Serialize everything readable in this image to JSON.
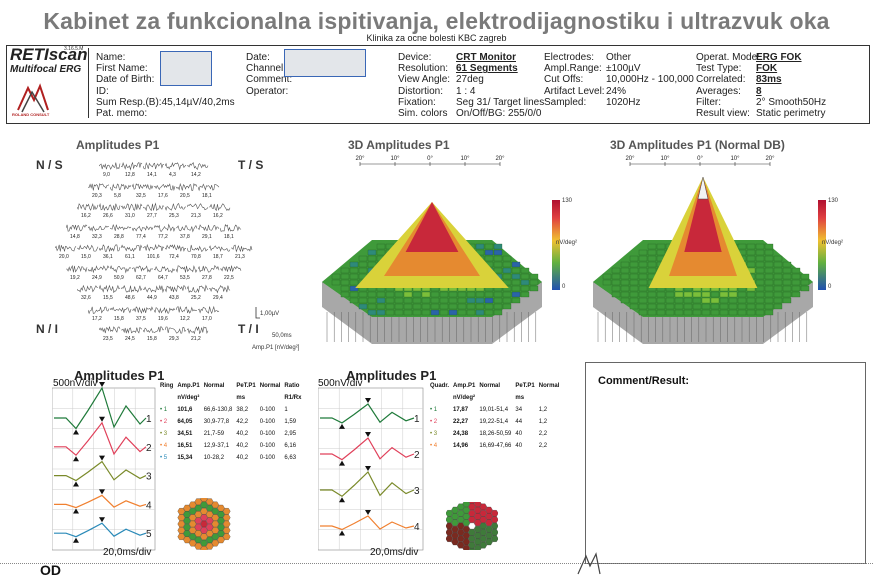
{
  "header": {
    "title": "Kabinet za funkcionalna ispitivanja, elektrodijagnostiku i ultrazvuk oka",
    "subtitle": "Klinika za ocne bolesti KBC zagreb"
  },
  "brand": {
    "name": "RETIscan",
    "sub": "Multifocal ERG",
    "version": "3.16.5.M",
    "maker": "ROLAND CONSULT"
  },
  "patient": {
    "labels": [
      "Name:",
      "First Name:",
      "Date of Birth:",
      "ID:",
      "Sum Resp.(B):45,14µV/40,2ms",
      "Pat. memo:"
    ]
  },
  "session": {
    "labels": [
      "Date:",
      "Channel:",
      "",
      "Comment:",
      "Operator:"
    ]
  },
  "device": {
    "labels": [
      "Device:",
      "Resolution:",
      "View Angle:",
      "Distortion:",
      "Fixation:",
      "Sim. colors"
    ],
    "values": [
      "CRT Monitor",
      "61 Segments",
      "27deg",
      "1 : 4",
      "Seg 31/ Target lines",
      "On/Off/BG: 255/0/0"
    ]
  },
  "electrodes": {
    "labels": [
      "Electrodes:",
      "Ampl.Range:",
      "Cut Offs:",
      "Artifact Level:",
      "Sampled:"
    ],
    "values": [
      "Other",
      "±100µV",
      "10,000Hz - 100,000Hz",
      "24%",
      "1020Hz"
    ]
  },
  "operation": {
    "labels": [
      "Operat. Mode:",
      "Test Type:",
      "Correlated:",
      "Averages:",
      "Filter:",
      "Result view:"
    ],
    "values": [
      "ERG FOK",
      "FOK",
      "83ms",
      "8",
      "2° Smooth50Hz",
      "Static perimetry"
    ]
  },
  "traces_panel": {
    "title": "Amplitudes P1",
    "corners": {
      "ns": "N / S",
      "ts": "T / S",
      "ni": "N / I",
      "ti": "T / I"
    },
    "scale_v": "1,00µV",
    "scale_t": "50,0ms",
    "units": "Amp.P1 [nV/deg²]",
    "rows": [
      [
        "9,0",
        "12,8",
        "14,1",
        "4,3",
        "14,2"
      ],
      [
        "20,3",
        "5,8",
        "32,5",
        "17,6",
        "20,5",
        "18,1"
      ],
      [
        "16,2",
        "26,6",
        "31,0",
        "27,7",
        "25,3",
        "21,3",
        "16,2"
      ],
      [
        "14,8",
        "32,3",
        "28,8",
        "77,4",
        "77,2",
        "37,8",
        "29,1",
        "18,1"
      ],
      [
        "20,0",
        "15,0",
        "36,1",
        "61,1",
        "101,6",
        "72,4",
        "70,8",
        "18,7",
        "21,3"
      ],
      [
        "19,2",
        "24,9",
        "50,9",
        "62,7",
        "64,7",
        "53,5",
        "27,8",
        "22,5"
      ],
      [
        "32,6",
        "15,5",
        "48,6",
        "44,9",
        "43,8",
        "25,2",
        "29,4"
      ],
      [
        "17,2",
        "15,8",
        "37,5",
        "19,6",
        "12,2",
        "17,0"
      ],
      [
        "23,5",
        "24,5",
        "15,8",
        "29,3",
        "21,2"
      ]
    ]
  },
  "surface1": {
    "title": "3D Amplitudes P1",
    "ticks": [
      "20°",
      "10°",
      "0°",
      "10°",
      "20°"
    ],
    "scale_max": "130",
    "scale_min": "0",
    "unit": "nV/deg²"
  },
  "surface2": {
    "title": "3D Amplitudes P1 (Normal DB)",
    "ticks": [
      "20°",
      "10°",
      "0°",
      "10°",
      "20°"
    ],
    "scale_max": "130",
    "scale_min": "0",
    "unit": "nV/deg²"
  },
  "rings": {
    "title": "Amplitudes P1",
    "ylabel": "500nV/div",
    "xlabel": "20,0ms/div",
    "trace_labels": [
      "1",
      "2",
      "3",
      "4",
      "5"
    ],
    "table_headers": [
      "Ring",
      "Amp.P1",
      "Normal",
      "PeT.P1",
      "Normal",
      "Ratio"
    ],
    "table_subheaders": [
      "",
      "nV/deg²",
      "",
      "ms",
      "",
      "R1/Rx"
    ],
    "rows": [
      [
        "1",
        "101,6",
        "66,6-130,8",
        "38,2",
        "0-100",
        "1"
      ],
      [
        "2",
        "64,05",
        "30,9-77,8",
        "42,2",
        "0-100",
        "1,59"
      ],
      [
        "3",
        "34,51",
        "21,7-59",
        "40,2",
        "0-100",
        "2,95"
      ],
      [
        "4",
        "16,51",
        "12,9-37,1",
        "40,2",
        "0-100",
        "6,16"
      ],
      [
        "5",
        "15,34",
        "10-28,2",
        "40,2",
        "0-100",
        "6,63"
      ]
    ]
  },
  "quadrants": {
    "title": "Amplitudes P1",
    "ylabel": "500nV/div",
    "xlabel": "20,0ms/div",
    "trace_labels": [
      "1",
      "2",
      "3",
      "4"
    ],
    "table_headers": [
      "Quadr.",
      "Amp.P1",
      "Normal",
      "PeT.P1",
      "Normal"
    ],
    "table_subheaders": [
      "",
      "nV/deg²",
      "",
      "ms",
      ""
    ],
    "rows": [
      [
        "1",
        "17,87",
        "19,01-51,4",
        "34",
        "1,2"
      ],
      [
        "2",
        "22,27",
        "19,22-51,4",
        "44",
        "1,2"
      ],
      [
        "3",
        "24,38",
        "18,26-50,59",
        "40",
        "2,2"
      ],
      [
        "4",
        "14,96",
        "16,69-47,66",
        "40",
        "2,2"
      ]
    ]
  },
  "comment": {
    "title": "Comment/Result:"
  },
  "footer": {
    "eye": "OD"
  },
  "colors": {
    "ring1": "#1f7a3a",
    "ring2": "#e0405a",
    "ring3": "#7a8a2a",
    "ring4": "#f08030",
    "ring5": "#2a8ab8"
  }
}
